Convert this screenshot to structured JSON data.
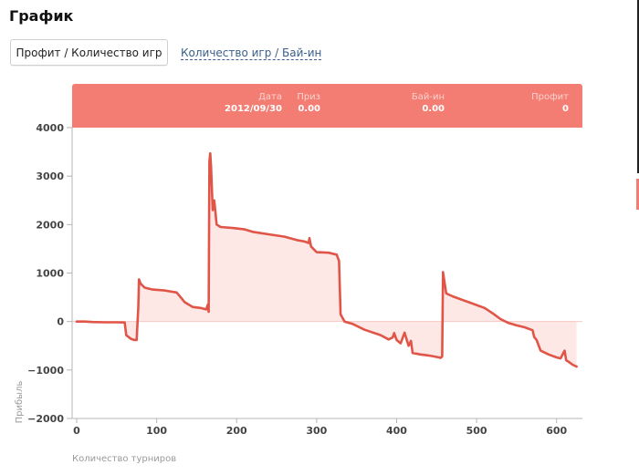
{
  "header": {
    "title": "График"
  },
  "tabs": [
    {
      "label": "Профит / Количество игр",
      "active": true
    },
    {
      "label": "Количество игр / Бай-ин",
      "active": false
    }
  ],
  "tooltip": {
    "columns": [
      {
        "label": "Дата",
        "value": "2012/09/30"
      },
      {
        "label": "Приз",
        "value": "0.00"
      },
      {
        "label": "Бай-ин",
        "value": "0.00"
      },
      {
        "label": "Профит",
        "value": "0"
      }
    ]
  },
  "colors": {
    "line": "#e05547",
    "fill": "#fde8e6",
    "tooltip": "#f37d72"
  },
  "chart_data": {
    "type": "area",
    "title": "",
    "xlabel": "Количество турниров",
    "ylabel": "Прибыль",
    "xlim": [
      0,
      630
    ],
    "ylim": [
      -2000,
      4000
    ],
    "x_ticks": [
      "0",
      "100",
      "200",
      "300",
      "400",
      "500",
      "600"
    ],
    "y_ticks": [
      "4000",
      "3000",
      "2000",
      "1000",
      "0",
      "−1000",
      "−2000"
    ],
    "grid": false,
    "series": [
      {
        "x": [
          0,
          10,
          20,
          35,
          50,
          60,
          62,
          68,
          72,
          75,
          77,
          78,
          80,
          85,
          95,
          110,
          125,
          130,
          135,
          145,
          155,
          162,
          163,
          164,
          165,
          166,
          167,
          168,
          170,
          172,
          175,
          180,
          195,
          210,
          220,
          240,
          260,
          275,
          285,
          290,
          291,
          293,
          300,
          315,
          325,
          328,
          330,
          335,
          345,
          360,
          380,
          390,
          395,
          397,
          400,
          405,
          410,
          415,
          418,
          420,
          430,
          440,
          450,
          455,
          457,
          458,
          460,
          462,
          470,
          490,
          510,
          520,
          530,
          540,
          550,
          560,
          570,
          572,
          575,
          580,
          590,
          600,
          605,
          610,
          612,
          615,
          620,
          625
        ],
        "values": [
          0,
          0,
          -10,
          -15,
          -15,
          -20,
          -280,
          -360,
          -380,
          -380,
          300,
          870,
          780,
          700,
          660,
          640,
          600,
          500,
          400,
          300,
          280,
          250,
          300,
          350,
          200,
          3300,
          3470,
          3200,
          2300,
          2500,
          2000,
          1950,
          1930,
          1900,
          1850,
          1800,
          1750,
          1680,
          1650,
          1620,
          1720,
          1550,
          1430,
          1420,
          1380,
          1250,
          150,
          0,
          -50,
          -170,
          -280,
          -370,
          -330,
          -240,
          -380,
          -450,
          -230,
          -500,
          -400,
          -650,
          -680,
          -700,
          -730,
          -750,
          -720,
          1020,
          800,
          580,
          520,
          400,
          280,
          170,
          50,
          -30,
          -80,
          -120,
          -180,
          -320,
          -380,
          -600,
          -680,
          -740,
          -760,
          -600,
          -800,
          -830,
          -890,
          -930
        ]
      }
    ]
  }
}
